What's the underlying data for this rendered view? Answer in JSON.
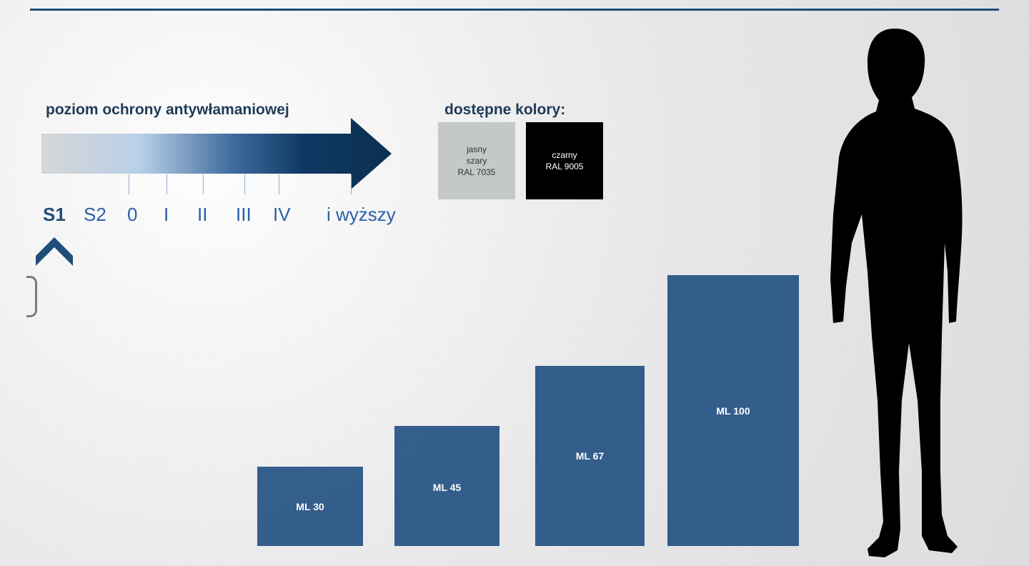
{
  "heading_levels": "poziom ochrony antywłamaniowej",
  "heading_colors": "dostępne kolory:",
  "levels": [
    "S1",
    "S2",
    "0",
    "I",
    "II",
    "III",
    "IV",
    "i wyższy"
  ],
  "colors": [
    {
      "line1": "jasny",
      "line2": "szary",
      "line3": "RAL 7035",
      "hex": "#c4c8c6"
    },
    {
      "line1": "czarny",
      "line2": "RAL 9005",
      "line3": "",
      "hex": "#000000"
    }
  ],
  "bars": [
    {
      "label": "ML 30"
    },
    {
      "label": "ML 45"
    },
    {
      "label": "ML 67"
    },
    {
      "label": "ML 100"
    }
  ],
  "accent_color": "#1f4e79"
}
